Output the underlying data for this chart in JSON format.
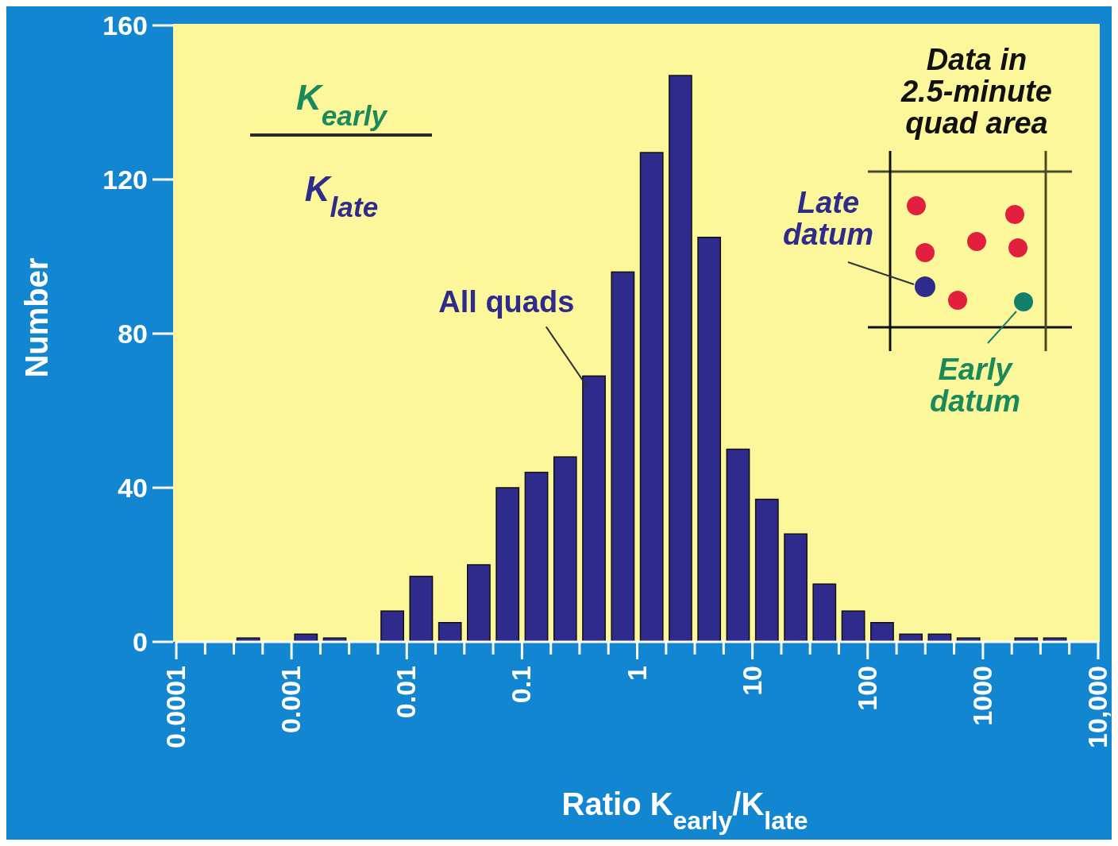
{
  "chart_data": {
    "type": "histogram",
    "xlabel": "Ratio K$_{early}$/K$_{late}$",
    "ylabel": "Number",
    "log": "x",
    "bins": [
      0.0001,
      0.000178,
      0.000316,
      0.000562,
      0.001,
      0.00178,
      0.00316,
      0.00562,
      0.01,
      0.0178,
      0.0316,
      0.0562,
      0.1,
      0.178,
      0.316,
      0.562,
      1,
      1.78,
      3.16,
      5.62,
      10,
      17.8,
      31.6,
      56.2,
      100,
      178,
      316,
      562,
      1000,
      1780,
      3160,
      5620,
      10000
    ],
    "values": [
      0,
      0,
      1,
      0,
      2,
      1,
      0,
      8,
      17,
      5,
      20,
      40,
      44,
      48,
      69,
      96,
      127,
      147,
      105,
      50,
      37,
      28,
      15,
      8,
      5,
      2,
      2,
      1,
      0,
      1,
      1,
      0
    ],
    "color": "#2e2b8c",
    "xlim": [
      0.0001,
      10000
    ],
    "xticks": [
      0.0001,
      {
        "value": 0.000178,
        "label": null
      },
      {
        "value": 0.000316,
        "label": null
      },
      {
        "value": 0.000562,
        "label": null
      },
      0.001,
      {
        "value": 0.00178,
        "label": null
      },
      {
        "value": 0.00316,
        "label": null
      },
      {
        "value": 0.00562,
        "label": null
      },
      0.01,
      {
        "value": 0.0178,
        "label": null
      },
      {
        "value": 0.0316,
        "label": null
      },
      {
        "value": 0.0562,
        "label": null
      },
      0.1,
      {
        "value": 0.178,
        "label": null
      },
      {
        "value": 0.316,
        "label": null
      },
      {
        "value": 0.562,
        "label": null
      },
      1,
      {
        "value": 1.78,
        "label": null
      },
      {
        "value": 3.16,
        "label": null
      },
      {
        "value": 5.62,
        "label": null
      },
      10,
      {
        "value": 17.8,
        "label": null
      },
      {
        "value": 31.6,
        "label": null
      },
      {
        "value": 56.2,
        "label": null
      },
      100,
      {
        "value": 178,
        "label": null
      },
      {
        "value": 316,
        "label": null
      },
      {
        "value": 562,
        "label": null
      },
      1000,
      {
        "value": 1780,
        "label": null
      },
      {
        "value": 3160,
        "label": null
      },
      {
        "value": 5620,
        "label": null
      },
      {
        "value": 10000,
        "label": "10,000"
      }
    ],
    "ylim": [
      0,
      160
    ],
    "yticks": [
      0,
      40,
      80,
      120,
      160
    ],
    "grid": false,
    "annotations": [
      "K$_{early}$",
      "K$_{late}$",
      {
        "text": "All quads",
        "x": 0.42,
        "y": 69
      },
      "Data in\n2.5-minute\nquad area",
      "Late\ndatum",
      "Early\ndatum"
    ]
  }
}
